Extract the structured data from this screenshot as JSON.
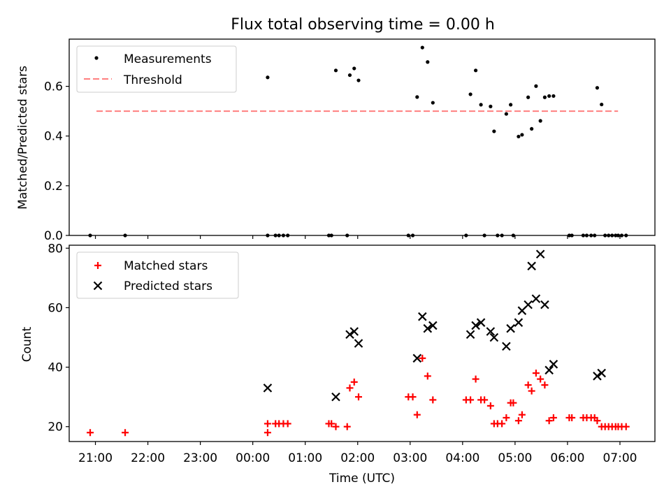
{
  "figure_title": "Flux total observing time = 0.00 h",
  "colors": {
    "measurement": "#000000",
    "threshold": "#ff7f7f",
    "matched": "#ff0000",
    "predicted": "#000000"
  },
  "chart_data": [
    {
      "type": "scatter",
      "ylabel": "Matched/Predicted stars",
      "xlim": [
        "20:30",
        "07:40"
      ],
      "ylim": [
        0,
        0.79
      ],
      "yticks": [
        "0.0",
        "0.2",
        "0.4",
        "0.6"
      ],
      "ytick_values": [
        0,
        0.2,
        0.4,
        0.6
      ],
      "grid": false,
      "legend": {
        "position": "top-left",
        "entries": [
          "Measurements",
          "Threshold"
        ]
      },
      "threshold": {
        "name": "Threshold",
        "y": 0.5,
        "x": [
          "20:30",
          "07:05"
        ],
        "style": "dashed"
      },
      "series": [
        {
          "name": "Measurements",
          "marker": "dot",
          "points": [
            [
              "20:54",
              0.0
            ],
            [
              "21:34",
              0.0
            ],
            [
              "00:17",
              0.0
            ],
            [
              "00:17",
              0.636
            ],
            [
              "00:26",
              0.0
            ],
            [
              "00:30",
              0.0
            ],
            [
              "00:35",
              0.0
            ],
            [
              "00:40",
              0.0
            ],
            [
              "01:27",
              0.0
            ],
            [
              "01:30",
              0.0
            ],
            [
              "01:35",
              0.664
            ],
            [
              "01:48",
              0.0
            ],
            [
              "01:51",
              0.645
            ],
            [
              "01:56",
              0.672
            ],
            [
              "02:01",
              0.624
            ],
            [
              "02:58",
              0.0
            ],
            [
              "03:03",
              0.0
            ],
            [
              "03:08",
              0.557
            ],
            [
              "03:14",
              0.756
            ],
            [
              "03:20",
              0.698
            ],
            [
              "03:26",
              0.534
            ],
            [
              "04:04",
              0.0
            ],
            [
              "04:09",
              0.568
            ],
            [
              "04:15",
              0.664
            ],
            [
              "04:21",
              0.526
            ],
            [
              "04:25",
              0.0
            ],
            [
              "04:32",
              0.519
            ],
            [
              "04:36",
              0.419
            ],
            [
              "04:40",
              0.0
            ],
            [
              "04:45",
              0.0
            ],
            [
              "04:50",
              0.489
            ],
            [
              "04:55",
              0.526
            ],
            [
              "04:58",
              0.0
            ],
            [
              "05:04",
              0.398
            ],
            [
              "05:08",
              0.405
            ],
            [
              "05:15",
              0.556
            ],
            [
              "05:19",
              0.429
            ],
            [
              "05:24",
              0.601
            ],
            [
              "05:29",
              0.461
            ],
            [
              "05:34",
              0.556
            ],
            [
              "05:39",
              0.561
            ],
            [
              "05:44",
              0.561
            ],
            [
              "06:02",
              0.0
            ],
            [
              "06:05",
              0.0
            ],
            [
              "06:18",
              0.0
            ],
            [
              "06:22",
              0.0
            ],
            [
              "06:27",
              0.0
            ],
            [
              "06:31",
              0.0
            ],
            [
              "06:34",
              0.594
            ],
            [
              "06:39",
              0.527
            ],
            [
              "06:43",
              0.0
            ],
            [
              "06:47",
              0.0
            ],
            [
              "06:51",
              0.0
            ],
            [
              "06:55",
              0.0
            ],
            [
              "06:58",
              0.0
            ],
            [
              "07:02",
              0.0
            ],
            [
              "07:07",
              0.0
            ]
          ]
        }
      ]
    },
    {
      "type": "scatter",
      "xlabel": "Time (UTC)",
      "ylabel": "Count",
      "xlim": [
        "20:30",
        "07:40"
      ],
      "ylim": [
        15,
        81
      ],
      "yticks": [
        "20",
        "40",
        "60",
        "80"
      ],
      "ytick_values": [
        20,
        40,
        60,
        80
      ],
      "xticks": [
        "21:00",
        "22:00",
        "23:00",
        "00:00",
        "01:00",
        "02:00",
        "03:00",
        "04:00",
        "05:00",
        "06:00",
        "07:00"
      ],
      "xtick_values": [
        "21:00",
        "22:00",
        "23:00",
        "00:00",
        "01:00",
        "02:00",
        "03:00",
        "04:00",
        "05:00",
        "06:00",
        "07:00"
      ],
      "grid": false,
      "legend": {
        "position": "top-left",
        "entries": [
          "Matched stars",
          "Predicted stars"
        ]
      },
      "series": [
        {
          "name": "Matched stars",
          "marker": "plus",
          "points": [
            [
              "20:54",
              18
            ],
            [
              "21:34",
              18
            ],
            [
              "00:17",
              18
            ],
            [
              "00:17",
              21
            ],
            [
              "00:26",
              21
            ],
            [
              "00:30",
              21
            ],
            [
              "00:35",
              21
            ],
            [
              "00:40",
              21
            ],
            [
              "01:27",
              21
            ],
            [
              "01:30",
              21
            ],
            [
              "01:35",
              20
            ],
            [
              "01:48",
              20
            ],
            [
              "01:51",
              33
            ],
            [
              "01:56",
              35
            ],
            [
              "02:01",
              30
            ],
            [
              "02:58",
              30
            ],
            [
              "03:03",
              30
            ],
            [
              "03:08",
              24
            ],
            [
              "03:14",
              43
            ],
            [
              "03:20",
              37
            ],
            [
              "03:26",
              29
            ],
            [
              "04:04",
              29
            ],
            [
              "04:09",
              29
            ],
            [
              "04:15",
              36
            ],
            [
              "04:21",
              29
            ],
            [
              "04:25",
              29
            ],
            [
              "04:32",
              27
            ],
            [
              "04:36",
              21
            ],
            [
              "04:40",
              21
            ],
            [
              "04:45",
              21
            ],
            [
              "04:50",
              23
            ],
            [
              "04:55",
              28
            ],
            [
              "04:58",
              28
            ],
            [
              "05:04",
              22
            ],
            [
              "05:08",
              24
            ],
            [
              "05:15",
              34
            ],
            [
              "05:19",
              32
            ],
            [
              "05:24",
              38
            ],
            [
              "05:29",
              36
            ],
            [
              "05:34",
              34
            ],
            [
              "05:39",
              22
            ],
            [
              "05:44",
              23
            ],
            [
              "06:02",
              23
            ],
            [
              "06:05",
              23
            ],
            [
              "06:18",
              23
            ],
            [
              "06:22",
              23
            ],
            [
              "06:27",
              23
            ],
            [
              "06:31",
              23
            ],
            [
              "06:34",
              22
            ],
            [
              "06:39",
              20
            ],
            [
              "06:43",
              20
            ],
            [
              "06:47",
              20
            ],
            [
              "06:51",
              20
            ],
            [
              "06:55",
              20
            ],
            [
              "06:58",
              20
            ],
            [
              "07:02",
              20
            ],
            [
              "07:07",
              20
            ]
          ]
        },
        {
          "name": "Predicted stars",
          "marker": "x",
          "points": [
            [
              "00:17",
              33
            ],
            [
              "01:35",
              30
            ],
            [
              "01:51",
              51
            ],
            [
              "01:56",
              52
            ],
            [
              "02:01",
              48
            ],
            [
              "03:08",
              43
            ],
            [
              "03:14",
              57
            ],
            [
              "03:20",
              53
            ],
            [
              "03:26",
              54
            ],
            [
              "04:09",
              51
            ],
            [
              "04:15",
              54
            ],
            [
              "04:21",
              55
            ],
            [
              "04:32",
              52
            ],
            [
              "04:36",
              50
            ],
            [
              "04:50",
              47
            ],
            [
              "04:55",
              53
            ],
            [
              "05:04",
              55
            ],
            [
              "05:08",
              59
            ],
            [
              "05:15",
              61
            ],
            [
              "05:19",
              74
            ],
            [
              "05:24",
              63
            ],
            [
              "05:29",
              78
            ],
            [
              "05:34",
              61
            ],
            [
              "05:39",
              39
            ],
            [
              "05:44",
              41
            ],
            [
              "06:34",
              37
            ],
            [
              "06:39",
              38
            ]
          ]
        }
      ]
    }
  ]
}
